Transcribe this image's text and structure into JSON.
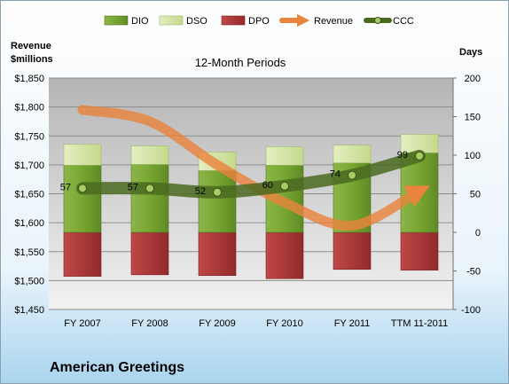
{
  "chart_data": {
    "type": "bar",
    "title": "12-Month Periods",
    "company": "American Greetings",
    "y_left_label_lines": [
      "Revenue",
      "$millions"
    ],
    "y_right_label": "Days",
    "categories": [
      "FY 2007",
      "FY 2008",
      "FY 2009",
      "FY 2010",
      "FY 2011",
      "TTM 11-2011"
    ],
    "ylim_left": [
      1450,
      1850
    ],
    "y_left_ticks": [
      1450,
      1500,
      1550,
      1600,
      1650,
      1700,
      1750,
      1800,
      1850
    ],
    "y_left_tick_labels": [
      "$1,450",
      "$1,500",
      "$1,550",
      "$1,600",
      "$1,650",
      "$1,700",
      "$1,750",
      "$1,800",
      "$1,850"
    ],
    "ylim_right": [
      -100,
      200
    ],
    "y_right_ticks": [
      -100,
      -50,
      0,
      50,
      100,
      150,
      200
    ],
    "y_right_tick_labels": [
      "-100",
      "-50",
      "0",
      "50",
      "100",
      "150",
      "200"
    ],
    "series": [
      {
        "name": "DIO",
        "axis": "right",
        "kind": "stacked-bar",
        "values": [
          87,
          88,
          80,
          87,
          90,
          103
        ]
      },
      {
        "name": "DSO",
        "axis": "right",
        "kind": "stacked-bar",
        "values": [
          27,
          24,
          24,
          24,
          23,
          24
        ]
      },
      {
        "name": "DPO",
        "axis": "right",
        "kind": "stacked-bar",
        "values": [
          -57,
          -55,
          -56,
          -60,
          -48,
          -49
        ]
      },
      {
        "name": "Revenue",
        "axis": "left",
        "kind": "line",
        "values": [
          1795,
          1775,
          1700,
          1635,
          1595,
          1655
        ]
      },
      {
        "name": "CCC",
        "axis": "right",
        "kind": "line",
        "values": [
          57,
          57,
          52,
          60,
          74,
          99
        ]
      }
    ],
    "ccc_labels": [
      "57",
      "57",
      "52",
      "60",
      "74",
      "99"
    ],
    "legend": {
      "position": "top",
      "items": [
        "DIO",
        "DSO",
        "DPO",
        "Revenue",
        "CCC"
      ]
    },
    "grid": true,
    "colors": {
      "dio": "#7aa83a",
      "dso": "#d5e6a8",
      "dpo": "#b03838",
      "revenue": "#e8843c",
      "ccc": "#4a6a20",
      "plot_top": "#b5b5b5",
      "plot_bottom": "#f2f2f2",
      "bg_top": "#ffffff",
      "bg_bottom": "#a9d4ee"
    }
  }
}
